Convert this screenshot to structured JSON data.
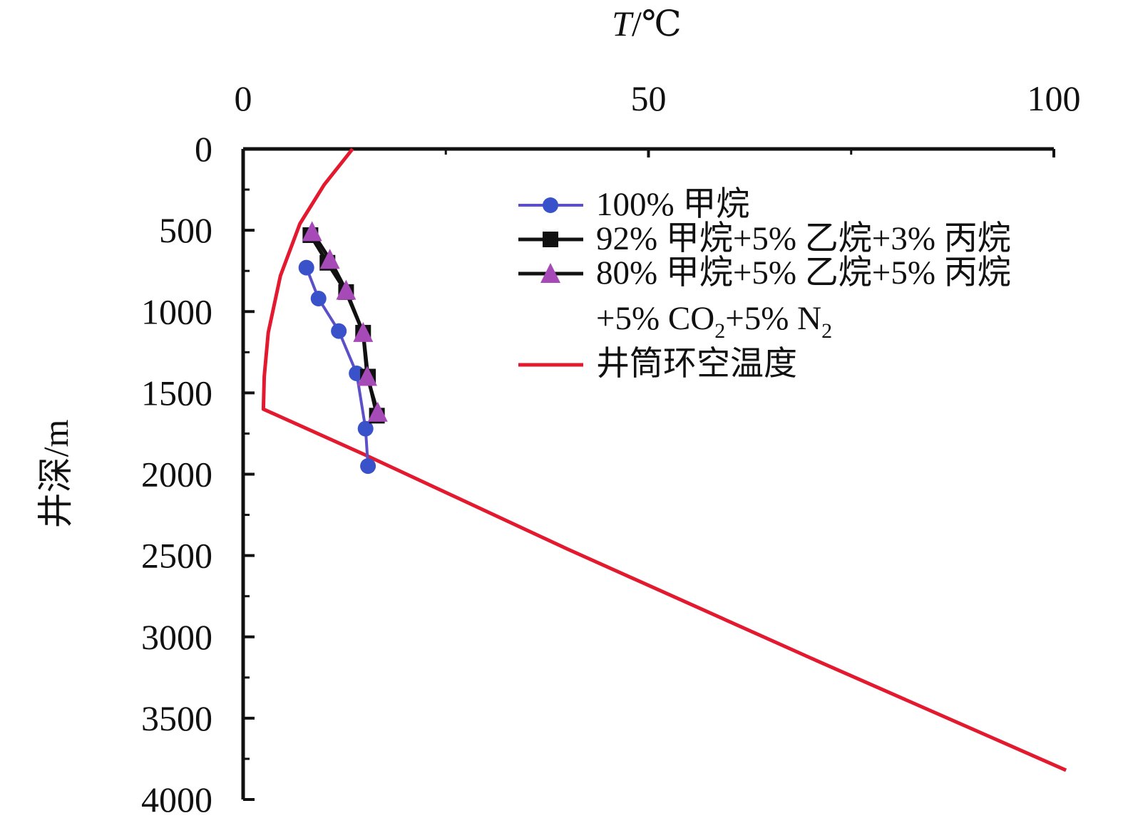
{
  "chart_data": {
    "type": "line",
    "title": "",
    "x_axis": {
      "label_italic": "T",
      "label_rest": "/℃",
      "position": "top",
      "range": [
        0,
        100
      ],
      "ticks": [
        0,
        50,
        100
      ],
      "tick_labels": [
        "0",
        "50",
        "100"
      ],
      "minor_ticks": [
        25,
        75
      ]
    },
    "y_axis": {
      "label": "井深/m",
      "reversed": true,
      "range": [
        0,
        4000
      ],
      "ticks": [
        0,
        500,
        1000,
        1500,
        2000,
        2500,
        3000,
        3500,
        4000
      ],
      "tick_labels": [
        "0",
        "500",
        "1000",
        "1500",
        "2000",
        "2500",
        "3000",
        "3500",
        "4000"
      ],
      "minor_ticks": [
        250,
        750,
        1250,
        1750,
        2250,
        2750,
        3250,
        3750
      ]
    },
    "grid": false,
    "legend_position": "top-right",
    "series": [
      {
        "name": "100% 甲烷",
        "marker": "circle",
        "line_color": "#5b50c8",
        "marker_color": "#3a52c9",
        "points": [
          [
            7.8,
            730
          ],
          [
            9.3,
            920
          ],
          [
            11.8,
            1120
          ],
          [
            14.0,
            1380
          ],
          [
            15.1,
            1720
          ],
          [
            15.4,
            1950
          ]
        ]
      },
      {
        "name": "92% 甲烷+5% 乙烷+3% 丙烷",
        "marker": "square",
        "line_color": "#111111",
        "marker_color": "#111111",
        "points": [
          [
            8.3,
            530
          ],
          [
            10.4,
            700
          ],
          [
            12.7,
            880
          ],
          [
            14.8,
            1130
          ],
          [
            15.4,
            1400
          ],
          [
            16.5,
            1640
          ]
        ]
      },
      {
        "name_line1": "80% 甲烷+5% 乙烷+5% 丙烷",
        "name_line2_prefix": "+5% CO",
        "name_line2_sub1": "2",
        "name_line2_mid": "+5% N",
        "name_line2_sub2": "2",
        "marker": "triangle",
        "line_color": "#111111",
        "marker_color": "#a64ab7",
        "points": [
          [
            8.5,
            510
          ],
          [
            10.7,
            680
          ],
          [
            12.7,
            870
          ],
          [
            14.8,
            1130
          ],
          [
            15.3,
            1400
          ],
          [
            16.6,
            1620
          ]
        ]
      },
      {
        "name": "井筒环空温度",
        "marker": "none",
        "line_color": "#e31a2f",
        "points": [
          [
            13.5,
            0
          ],
          [
            10.0,
            220
          ],
          [
            7.0,
            460
          ],
          [
            4.6,
            780
          ],
          [
            3.1,
            1130
          ],
          [
            2.6,
            1400
          ],
          [
            2.5,
            1600
          ],
          [
            15.0,
            1880
          ],
          [
            40.0,
            2460
          ],
          [
            70.0,
            3130
          ],
          [
            101.5,
            3820
          ]
        ]
      }
    ]
  }
}
